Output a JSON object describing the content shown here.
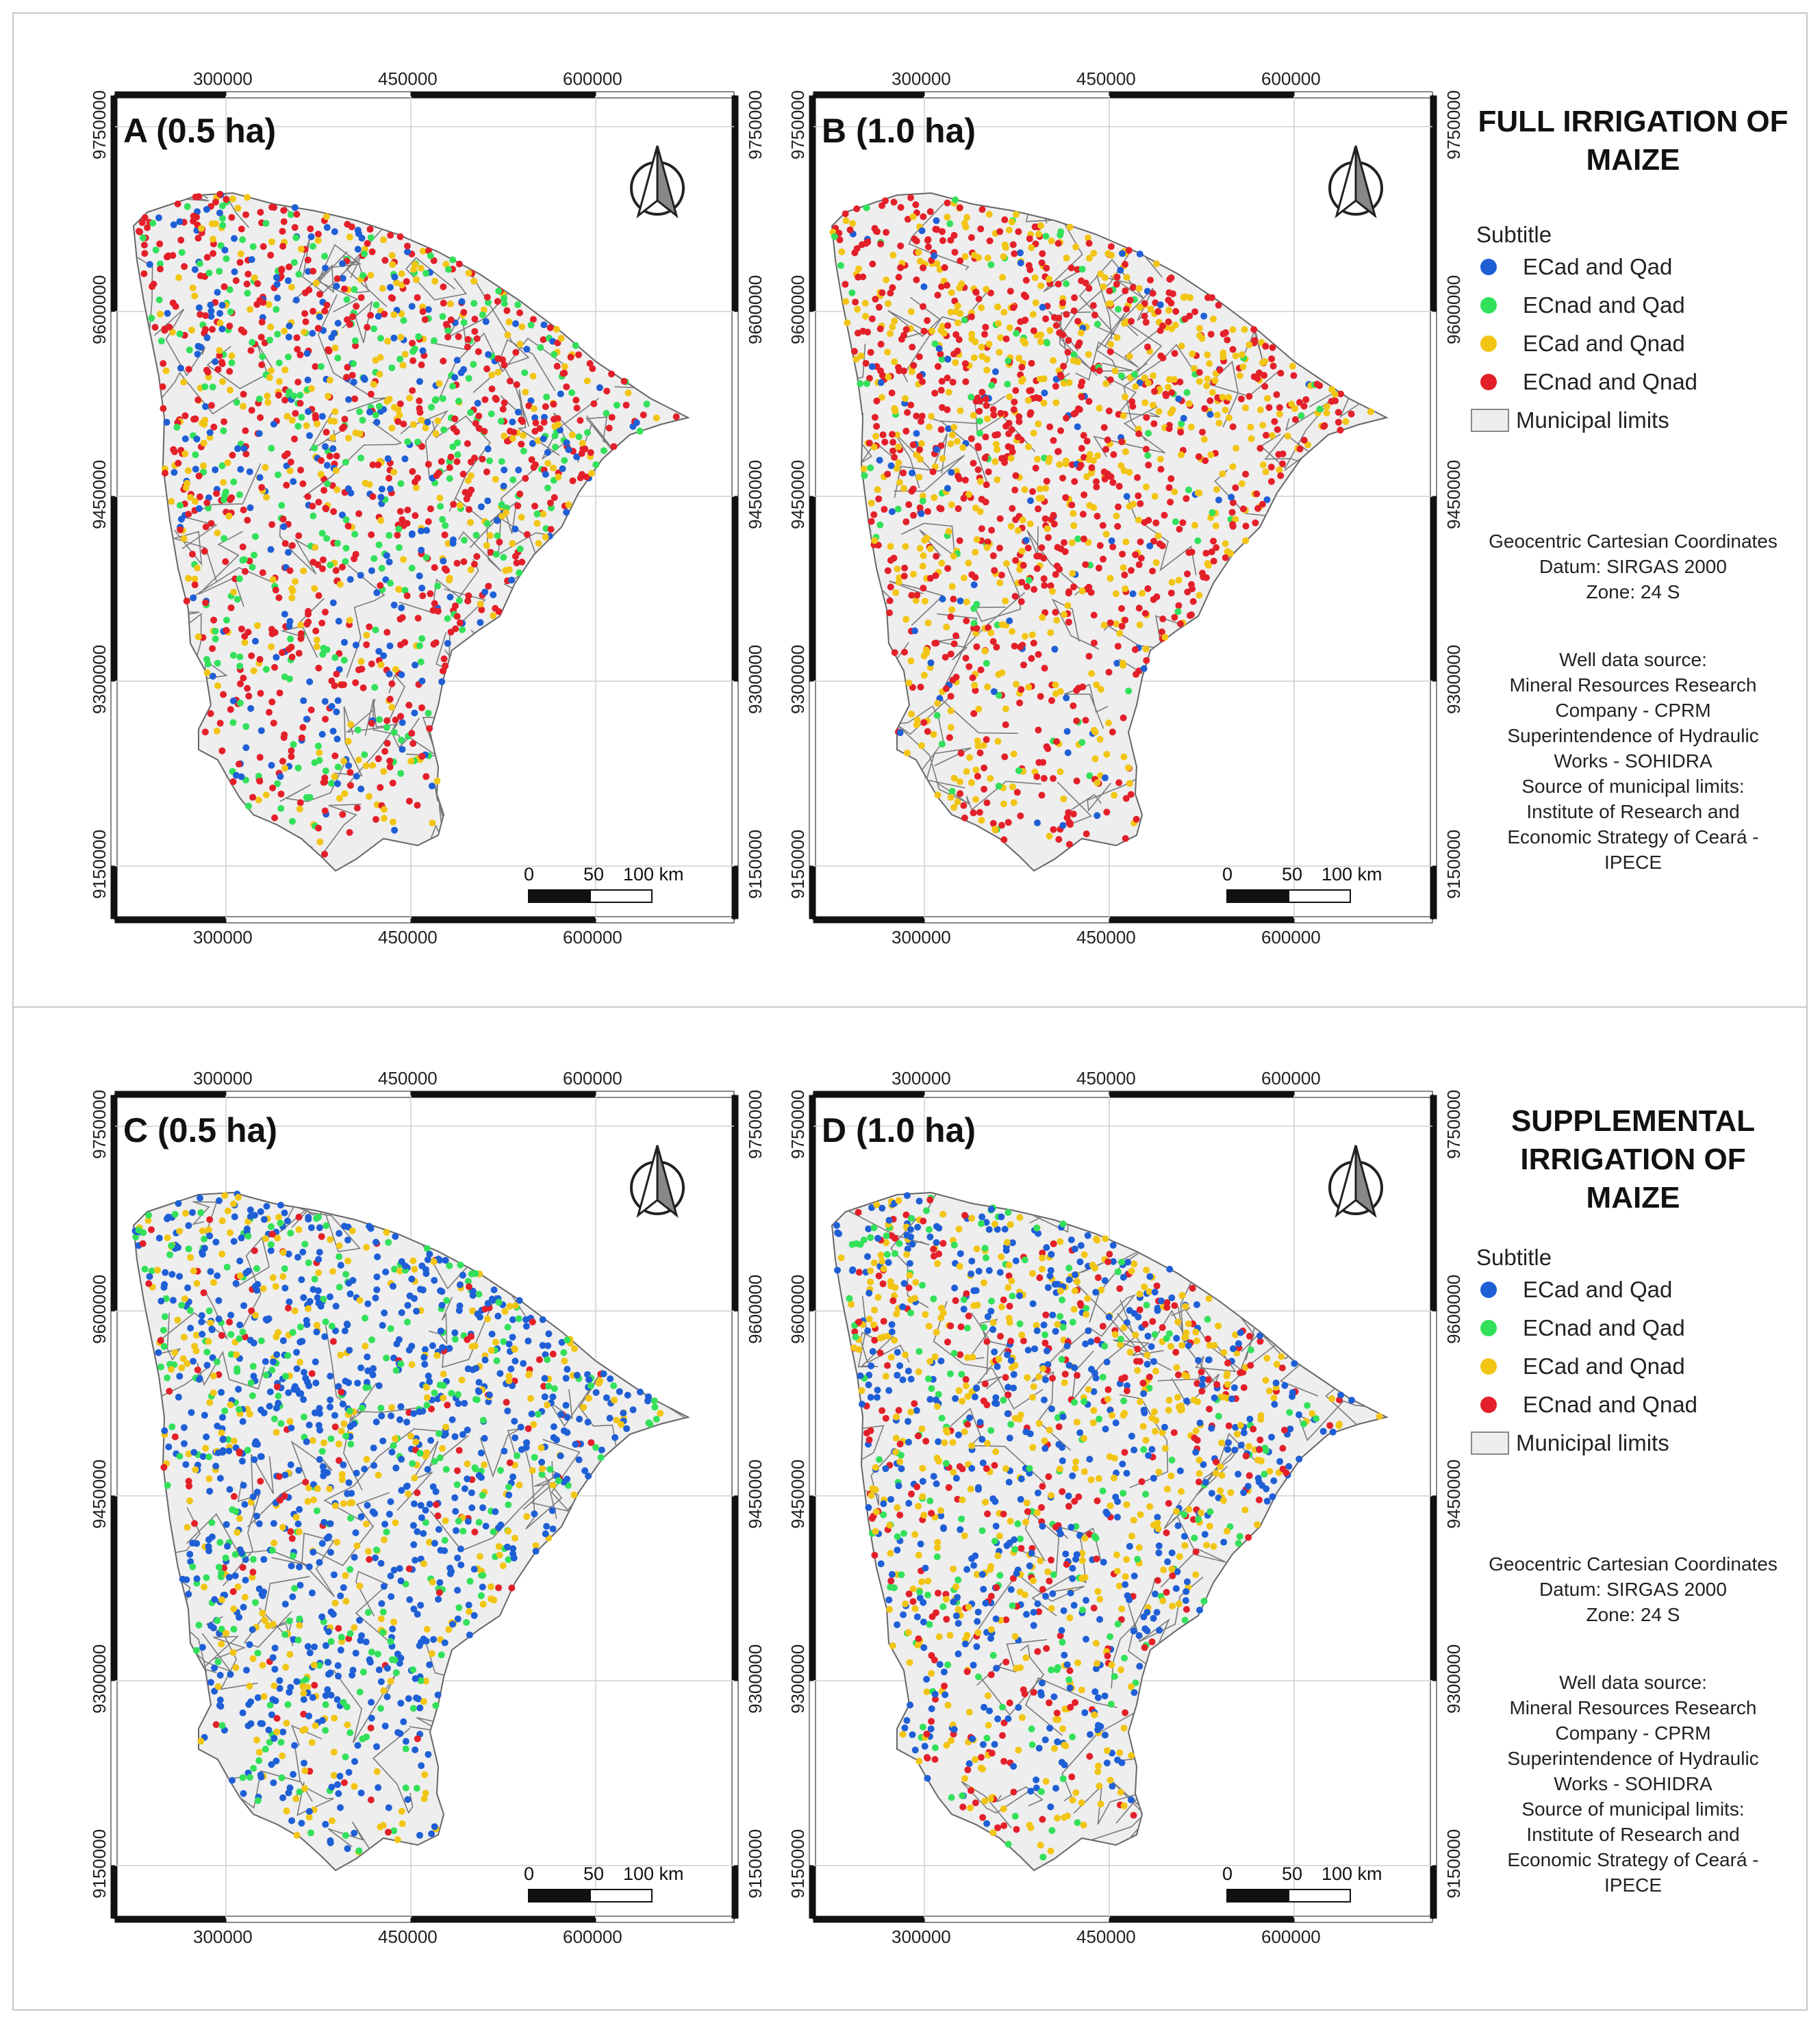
{
  "panels": [
    {
      "id": "A",
      "label": "A (0.5 ha)",
      "distribution": {
        "ECad and Qad": 0.18,
        "ECnad and Qad": 0.2,
        "ECad and Qnad": 0.2,
        "ECnad and Qnad": 0.42
      }
    },
    {
      "id": "B",
      "label": "B (1.0 ha)",
      "distribution": {
        "ECad and Qad": 0.06,
        "ECnad and Qad": 0.06,
        "ECad and Qnad": 0.36,
        "ECnad and Qnad": 0.52
      }
    },
    {
      "id": "C",
      "label": "C (0.5 ha)",
      "distribution": {
        "ECad and Qad": 0.5,
        "ECnad and Qad": 0.2,
        "ECad and Qnad": 0.22,
        "ECnad and Qnad": 0.08
      }
    },
    {
      "id": "D",
      "label": "D (1.0 ha)",
      "distribution": {
        "ECad and Qad": 0.34,
        "ECnad and Qad": 0.12,
        "ECad and Qnad": 0.34,
        "ECnad and Qnad": 0.2
      }
    }
  ],
  "axis": {
    "x_ticks": [
      "300000",
      "450000",
      "600000"
    ],
    "y_ticks": [
      "9750000",
      "9600000",
      "9450000",
      "9300000",
      "9150000"
    ]
  },
  "scale_bar": {
    "labels": [
      "0",
      "50",
      "100 km"
    ]
  },
  "sections": [
    {
      "title": "FULL IRRIGATION OF MAIZE",
      "title_lines": [
        "FULL IRRIGATION OF",
        "MAIZE"
      ]
    },
    {
      "title": "SUPPLEMENTAL IRRIGATION OF MAIZE",
      "title_lines": [
        "SUPPLEMENTAL",
        "IRRIGATION OF",
        "MAIZE"
      ]
    }
  ],
  "legend": {
    "title": "Subtitle",
    "items": [
      {
        "label": "ECad and Qad",
        "color": "#1f5fd6"
      },
      {
        "label": "ECnad and Qad",
        "color": "#33e05a"
      },
      {
        "label": "ECad and Qnad",
        "color": "#f2c515"
      },
      {
        "label": "ECnad and Qnad",
        "color": "#e3202a"
      },
      {
        "label": "Municipal limits",
        "color": "#eeeeee"
      }
    ]
  },
  "coord_info": [
    "Geocentric Cartesian Coordinates",
    "Datum: SIRGAS 2000",
    "Zone: 24 S"
  ],
  "source_info": [
    "Well data source:",
    "Mineral Resources Research",
    "Company - CPRM",
    "Superintendence of Hydraulic",
    "Works - SOHIDRA",
    "Source of municipal limits:",
    "Institute of Research and",
    "Economic Strategy of Ceará -",
    "IPECE"
  ]
}
